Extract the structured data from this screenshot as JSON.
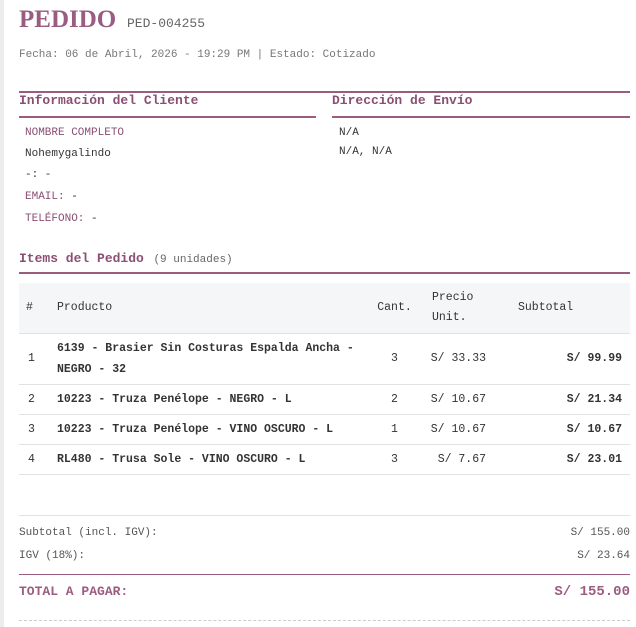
{
  "header": {
    "title": "PEDIDO",
    "code": "PED-004255",
    "meta": "Fecha: 06 de Abril, 2026 - 19:29 PM | Estado: Cotizado"
  },
  "client": {
    "heading": "Información del Cliente",
    "name_label": "NOMBRE COMPLETO",
    "name": "Nohemygalindo",
    "doc_line": "-: -",
    "email_label": "EMAIL:",
    "email": "-",
    "phone_label": "TELÉFONO:",
    "phone": "-"
  },
  "shipping": {
    "heading": "Dirección de Envío",
    "line1": "N/A",
    "line2": "N/A, N/A"
  },
  "items": {
    "heading": "Items del Pedido",
    "count": "(9 unidades)",
    "columns": [
      "#",
      "Producto",
      "Cant.",
      "Precio Unit.",
      "Subtotal"
    ],
    "rows": [
      {
        "n": "1",
        "product": "6139 - Brasier Sin Costuras Espalda Ancha - NEGRO - 32",
        "qty": "3",
        "price": "S/ 33.33",
        "subtotal": "S/ 99.99"
      },
      {
        "n": "2",
        "product": "10223 - Truza Penélope - NEGRO - L",
        "qty": "2",
        "price": "S/ 10.67",
        "subtotal": "S/ 21.34"
      },
      {
        "n": "3",
        "product": "10223 - Truza Penélope - VINO OSCURO - L",
        "qty": "1",
        "price": "S/ 10.67",
        "subtotal": "S/ 10.67"
      },
      {
        "n": "4",
        "product": "RL480 - Trusa Sole - VINO OSCURO - L",
        "qty": "3",
        "price": "S/ 7.67",
        "subtotal": "S/ 23.01"
      }
    ]
  },
  "totals": {
    "subtotal_label": "Subtotal (incl. IGV):",
    "subtotal": "S/ 155.00",
    "igv_label": "IGV (18%):",
    "igv": "S/ 23.64",
    "total_label": "TOTAL A PAGAR:",
    "total": "S/ 155.00"
  },
  "colors": {
    "accent": "#9b5c82"
  }
}
